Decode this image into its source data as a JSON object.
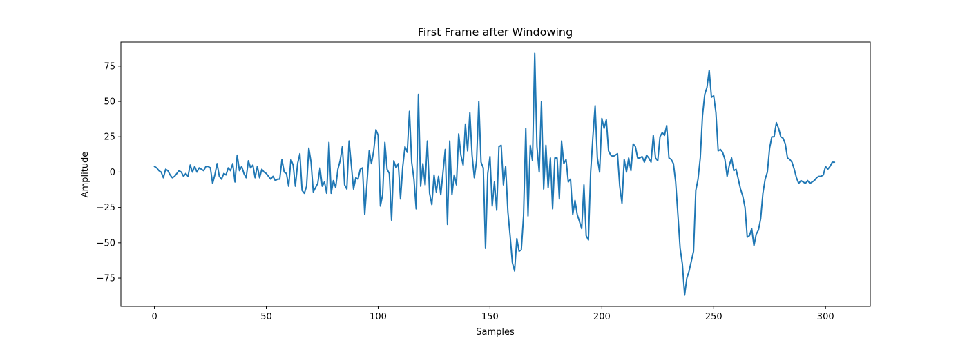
{
  "chart_data": {
    "type": "line",
    "title": "First Frame after Windowing",
    "xlabel": "Samples",
    "ylabel": "Amplitude",
    "xlim": [
      -15,
      320
    ],
    "ylim": [
      -95,
      92
    ],
    "xticks": [
      0,
      50,
      100,
      150,
      200,
      250,
      300
    ],
    "yticks": [
      -75,
      -50,
      -25,
      0,
      25,
      50,
      75
    ],
    "grid": false,
    "legend": "none",
    "series": [
      {
        "color": "#1f77b4",
        "y": [
          4,
          3,
          1,
          0,
          -4,
          2,
          1,
          -2,
          -4,
          -3,
          -1,
          1,
          0,
          -3,
          -1,
          -3,
          5,
          0,
          4,
          0,
          3,
          2,
          1,
          4,
          4,
          3,
          -8,
          -2,
          6,
          -3,
          -5,
          -1,
          -2,
          3,
          1,
          6,
          -7,
          12,
          1,
          4,
          -1,
          -4,
          8,
          3,
          5,
          -4,
          4,
          -4,
          2,
          0,
          -1,
          -3,
          -5,
          -3,
          -6,
          -5,
          -5,
          9,
          0,
          -1,
          -10,
          9,
          5,
          -10,
          6,
          13,
          -13,
          -15,
          -10,
          17,
          7,
          -14,
          -11,
          -8,
          3,
          -10,
          -7,
          -15,
          21,
          -15,
          -6,
          -11,
          2,
          8,
          18,
          -9,
          -12,
          22,
          5,
          -12,
          -4,
          -5,
          2,
          3,
          -30,
          -8,
          15,
          6,
          15,
          30,
          26,
          -24,
          -16,
          21,
          2,
          -1,
          -34,
          8,
          3,
          6,
          -19,
          4,
          18,
          14,
          43,
          7,
          -5,
          -26,
          55,
          -10,
          6,
          -9,
          22,
          -15,
          -23,
          -2,
          -14,
          -3,
          -16,
          0,
          16,
          -37,
          22,
          -16,
          -2,
          -9,
          27,
          12,
          5,
          34,
          15,
          42,
          12,
          -4,
          8,
          50,
          7,
          3,
          -54,
          -1,
          11,
          -24,
          -7,
          -27,
          18,
          19,
          -9,
          4,
          -28,
          -45,
          -64,
          -70,
          -47,
          -56,
          -55,
          -31,
          31,
          -31,
          19,
          8,
          84,
          18,
          0,
          50,
          -12,
          19,
          -11,
          10,
          -26,
          10,
          10,
          -19,
          22,
          6,
          9,
          -7,
          -5,
          -30,
          -20,
          -30,
          -35,
          -40,
          -9,
          -45,
          -48,
          0,
          25,
          47,
          10,
          0,
          38,
          31,
          37,
          15,
          12,
          11,
          12,
          13,
          -10,
          -22,
          9,
          0,
          10,
          1,
          20,
          18,
          10,
          10,
          11,
          7,
          12,
          10,
          7,
          26,
          10,
          8,
          25,
          28,
          26,
          33,
          10,
          9,
          6,
          -7,
          -30,
          -54,
          -65,
          -87,
          -75,
          -70,
          -63,
          -56,
          -13,
          -5,
          10,
          40,
          55,
          60,
          72,
          53,
          54,
          42,
          15,
          16,
          14,
          9,
          -3,
          5,
          10,
          1,
          2,
          -5,
          -12,
          -17,
          -25,
          -46,
          -45,
          -40,
          -52,
          -44,
          -41,
          -33,
          -15,
          -5,
          0,
          17,
          25,
          25,
          35,
          31,
          25,
          24,
          20,
          10,
          9,
          7,
          2,
          -4,
          -8,
          -6,
          -7,
          -8,
          -6,
          -8,
          -7,
          -6,
          -4,
          -3,
          -3,
          -2,
          4,
          2,
          4,
          7,
          7
        ]
      }
    ]
  }
}
